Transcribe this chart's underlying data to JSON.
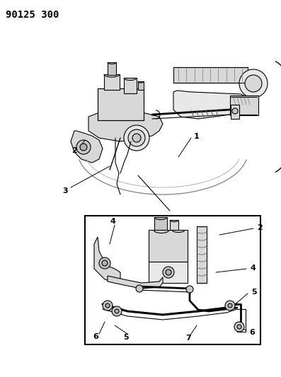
{
  "title": "90125 300",
  "background_color": "#ffffff",
  "line_color": "#000000",
  "fig_width": 3.97,
  "fig_height": 5.33,
  "dpi": 100,
  "title_fontsize": 10,
  "label_fontsize": 7.5,
  "lw": 0.8
}
